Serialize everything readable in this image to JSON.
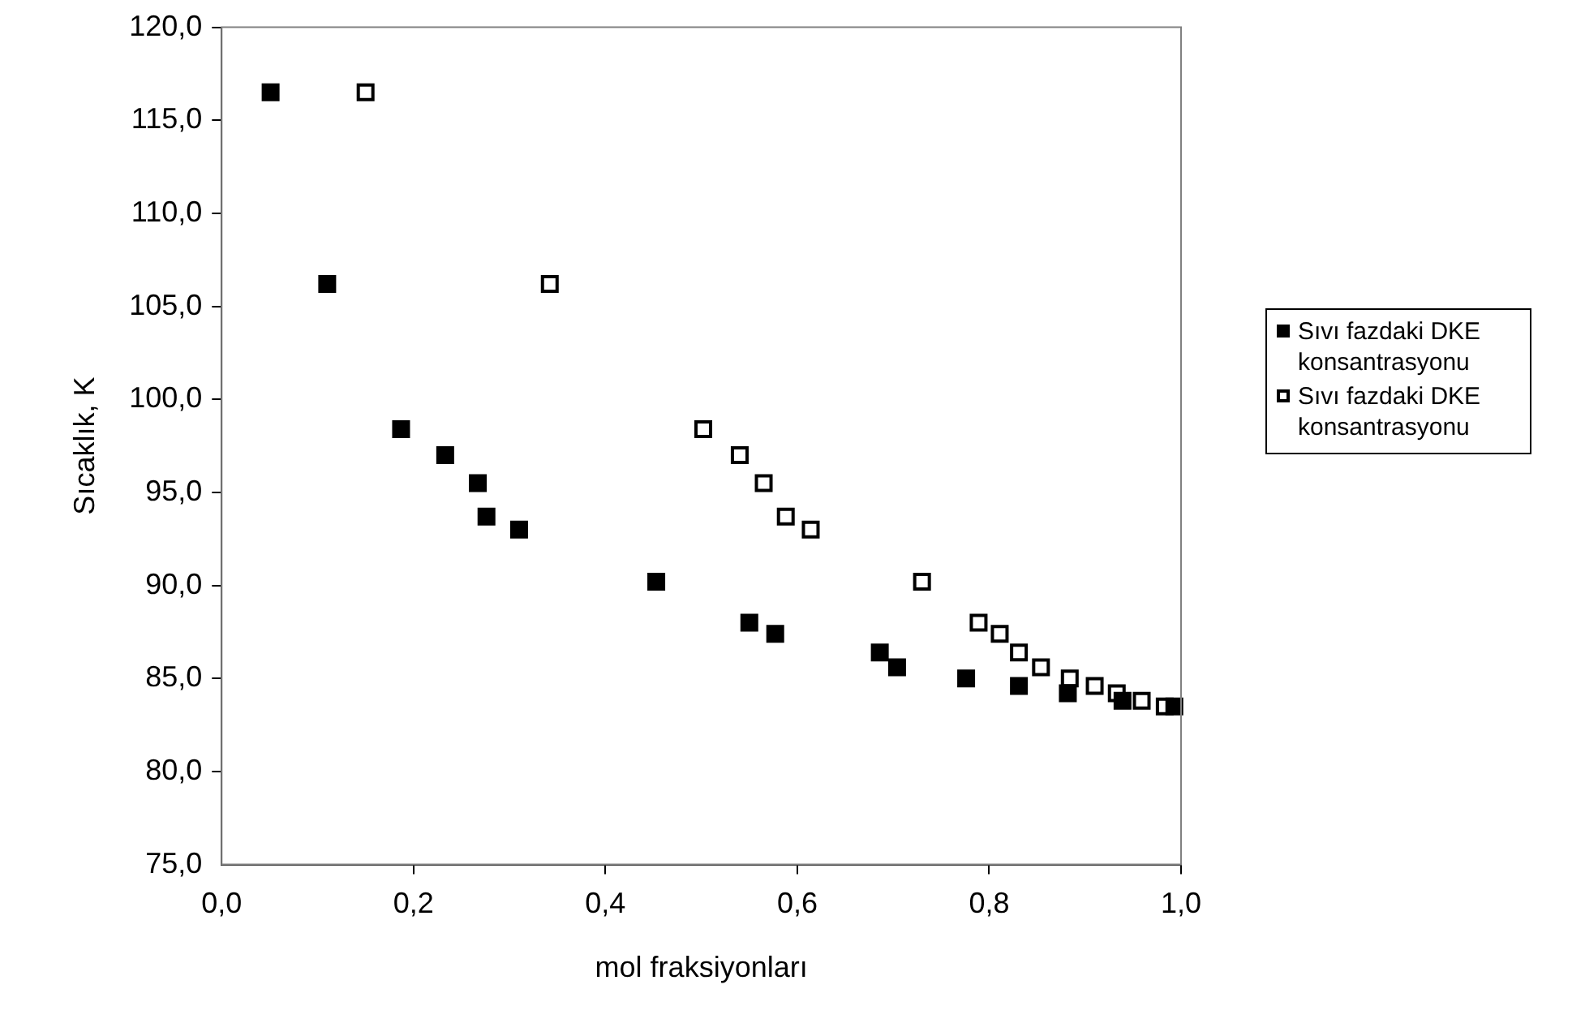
{
  "chart_data": {
    "type": "scatter",
    "xlabel": "mol fraksiyonları",
    "ylabel": "Sıcaklık, K",
    "xlim": [
      0,
      1
    ],
    "xticks": [
      {
        "value": 0,
        "label": "0,0"
      },
      {
        "value": 0.2,
        "label": "0,2"
      },
      {
        "value": 0.4,
        "label": "0,4"
      },
      {
        "value": 0.6,
        "label": "0,6"
      },
      {
        "value": 0.8,
        "label": "0,8"
      },
      {
        "value": 1,
        "label": "1,0"
      }
    ],
    "ylim": [
      75,
      120
    ],
    "yticks": [
      {
        "value": 75,
        "label": "75,0"
      },
      {
        "value": 80,
        "label": "80,0"
      },
      {
        "value": 85,
        "label": "85,0"
      },
      {
        "value": 90,
        "label": "90,0"
      },
      {
        "value": 95,
        "label": "95,0"
      },
      {
        "value": 100,
        "label": "100,0"
      },
      {
        "value": 105,
        "label": "105,0"
      },
      {
        "value": 110,
        "label": "110,0"
      },
      {
        "value": 115,
        "label": "115,0"
      },
      {
        "value": 120,
        "label": "120,0"
      }
    ],
    "grid": false,
    "legend": "right",
    "marker": "square",
    "series": [
      {
        "name": "Sıvı fazdaki DKE konsantrasyonu",
        "color": "#000000",
        "x": [
          0.051,
          0.11,
          0.187,
          0.233,
          0.267,
          0.276,
          0.31,
          0.453,
          0.55,
          0.577,
          0.686,
          0.704,
          0.776,
          0.831,
          0.882,
          0.939,
          0.993
        ],
        "values": [
          116.5,
          106.2,
          98.4,
          97.0,
          95.5,
          93.7,
          93.0,
          90.2,
          88.0,
          87.4,
          86.4,
          85.6,
          85.0,
          84.6,
          84.2,
          83.8,
          83.5
        ]
      },
      {
        "name": "Sıvı fazdaki DKE konsantrasyonu",
        "color": "#ffffff",
        "x": [
          0.15,
          0.342,
          0.502,
          0.54,
          0.565,
          0.588,
          0.614,
          0.73,
          0.789,
          0.811,
          0.831,
          0.854,
          0.884,
          0.91,
          0.933,
          0.959,
          0.983
        ],
        "values": [
          116.5,
          106.2,
          98.4,
          97.0,
          95.5,
          93.7,
          93.0,
          90.2,
          88.0,
          87.4,
          86.4,
          85.6,
          85.0,
          84.6,
          84.2,
          83.8,
          83.5
        ]
      }
    ]
  }
}
